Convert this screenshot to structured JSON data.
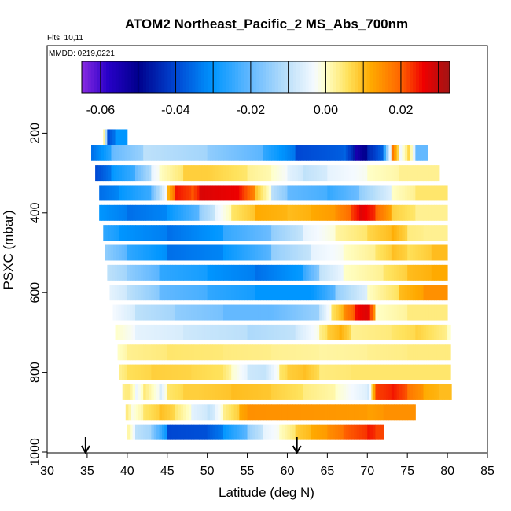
{
  "chart_data": {
    "type": "heatmap",
    "title": "ATOM2 Northeast_Pacific_2 MS_Abs_700nm",
    "flights_note": "Flts: 10,11",
    "dates_note": "MMDD: 0219,0221",
    "xlabel": "Latitude (deg N)",
    "ylabel": "PSXC (mbar)",
    "xlim": [
      30,
      85
    ],
    "ylim": [
      1000,
      0
    ],
    "xticks": [
      "30",
      "35",
      "40",
      "45",
      "50",
      "55",
      "60",
      "65",
      "70",
      "75",
      "80",
      "85"
    ],
    "yticks": [
      "200",
      "400",
      "600",
      "800",
      "1000"
    ],
    "colorbar": {
      "range": [
        -0.065,
        0.033
      ],
      "tick_values": [
        -0.06,
        -0.04,
        -0.02,
        0.0,
        0.02
      ],
      "tick_labels": [
        "-0.06",
        "-0.04",
        "-0.02",
        "0.00",
        "0.02"
      ]
    },
    "markers_lat": [
      34.8,
      61.2
    ],
    "rows": [
      {
        "p": 210,
        "segments": [
          [
            37,
            0.01
          ],
          [
            37.5,
            -0.04
          ],
          [
            38.5,
            -0.03
          ],
          [
            40,
            null
          ]
        ]
      },
      {
        "p": 250,
        "segments": [
          [
            35.5,
            -0.035
          ],
          [
            38,
            -0.02
          ],
          [
            42,
            -0.01
          ],
          [
            50,
            -0.015
          ],
          [
            57,
            -0.025
          ],
          [
            61,
            -0.04
          ],
          [
            67,
            -0.035
          ],
          [
            68.5,
            -0.055
          ],
          [
            70,
            -0.045
          ],
          [
            72,
            -0.03
          ],
          [
            73,
            0.02
          ],
          [
            74,
            -0.005
          ],
          [
            75,
            0.01
          ],
          [
            76,
            -0.02
          ],
          [
            77.5,
            null
          ]
        ]
      },
      {
        "p": 300,
        "segments": [
          [
            36,
            -0.04
          ],
          [
            38,
            -0.03
          ],
          [
            41,
            -0.02
          ],
          [
            43,
            -0.005
          ],
          [
            44,
            0.0
          ],
          [
            47,
            0.008
          ],
          [
            50,
            0.008
          ],
          [
            55,
            0.003
          ],
          [
            58,
            0.0
          ],
          [
            60,
            -0.005
          ],
          [
            62,
            -0.01
          ],
          [
            65,
            -0.005
          ],
          [
            70,
            0.0
          ],
          [
            74,
            0.003
          ],
          [
            79,
            null
          ]
        ]
      },
      {
        "p": 350,
        "segments": [
          [
            36.5,
            -0.035
          ],
          [
            39,
            -0.03
          ],
          [
            43,
            -0.02
          ],
          [
            45,
            0.01
          ],
          [
            46,
            0.025
          ],
          [
            48,
            0.02
          ],
          [
            49,
            0.028
          ],
          [
            54,
            0.025
          ],
          [
            56,
            0.01
          ],
          [
            58,
            -0.01
          ],
          [
            60,
            -0.02
          ],
          [
            65,
            -0.025
          ],
          [
            69,
            -0.015
          ],
          [
            73,
            0.0
          ],
          [
            76,
            0.005
          ],
          [
            80,
            null
          ]
        ]
      },
      {
        "p": 400,
        "segments": [
          [
            36.5,
            -0.03
          ],
          [
            40,
            -0.035
          ],
          [
            45,
            -0.03
          ],
          [
            49,
            -0.015
          ],
          [
            51,
            -0.005
          ],
          [
            53,
            0.005
          ],
          [
            56,
            0.012
          ],
          [
            60,
            0.01
          ],
          [
            63,
            0.012
          ],
          [
            66,
            0.015
          ],
          [
            68,
            0.022
          ],
          [
            69,
            0.028
          ],
          [
            71,
            0.02
          ],
          [
            73,
            0.008
          ],
          [
            76,
            0.003
          ],
          [
            80,
            null
          ]
        ]
      },
      {
        "p": 450,
        "segments": [
          [
            37,
            -0.025
          ],
          [
            39,
            -0.03
          ],
          [
            45,
            -0.035
          ],
          [
            52,
            -0.025
          ],
          [
            58,
            -0.015
          ],
          [
            62,
            -0.005
          ],
          [
            66,
            0.002
          ],
          [
            70,
            0.007
          ],
          [
            73,
            0.012
          ],
          [
            75,
            0.004
          ],
          [
            77,
            0.003
          ],
          [
            80,
            null
          ]
        ]
      },
      {
        "p": 500,
        "segments": [
          [
            37.2,
            -0.015
          ],
          [
            40,
            -0.025
          ],
          [
            45,
            -0.035
          ],
          [
            52,
            -0.03
          ],
          [
            58,
            -0.015
          ],
          [
            63,
            -0.005
          ],
          [
            67,
            0.0
          ],
          [
            71,
            0.005
          ],
          [
            73,
            0.01
          ],
          [
            75,
            0.006
          ],
          [
            78,
            0.01
          ],
          [
            80,
            null
          ]
        ]
      },
      {
        "p": 550,
        "segments": [
          [
            37.5,
            -0.01
          ],
          [
            40,
            -0.015
          ],
          [
            44,
            -0.025
          ],
          [
            50,
            -0.03
          ],
          [
            56,
            -0.035
          ],
          [
            62,
            -0.025
          ],
          [
            64,
            -0.01
          ],
          [
            67,
            0.0
          ],
          [
            72,
            0.005
          ],
          [
            75,
            0.01
          ],
          [
            78,
            0.012
          ],
          [
            80,
            null
          ]
        ]
      },
      {
        "p": 600,
        "segments": [
          [
            37.8,
            -0.005
          ],
          [
            40,
            -0.01
          ],
          [
            44,
            -0.02
          ],
          [
            50,
            -0.025
          ],
          [
            56,
            -0.03
          ],
          [
            63,
            -0.03
          ],
          [
            66,
            -0.015
          ],
          [
            70,
            0.0
          ],
          [
            74,
            0.01
          ],
          [
            77,
            0.015
          ],
          [
            80,
            null
          ]
        ]
      },
      {
        "p": 650,
        "segments": [
          [
            38.2,
            -0.003
          ],
          [
            41,
            -0.01
          ],
          [
            46,
            -0.015
          ],
          [
            52,
            -0.02
          ],
          [
            58,
            -0.02
          ],
          [
            64,
            -0.01
          ],
          [
            65.5,
            0.005
          ],
          [
            67,
            0.015
          ],
          [
            68.5,
            0.025
          ],
          [
            70,
            0.03
          ],
          [
            71,
            0.0
          ],
          [
            75,
            0.004
          ],
          [
            80,
            null
          ]
        ]
      },
      {
        "p": 700,
        "segments": [
          [
            38.5,
            0.0
          ],
          [
            41,
            -0.005
          ],
          [
            47,
            -0.008
          ],
          [
            55,
            -0.012
          ],
          [
            61,
            -0.008
          ],
          [
            64,
            0.003
          ],
          [
            65,
            0.008
          ],
          [
            66.5,
            0.012
          ],
          [
            68,
            0.003
          ],
          [
            73,
            0.005
          ],
          [
            76,
            0.008
          ],
          [
            80,
            0.0
          ],
          [
            80.4,
            null
          ]
        ]
      },
      {
        "p": 750,
        "segments": [
          [
            38.8,
            0.0
          ],
          [
            40,
            0.003
          ],
          [
            45,
            0.005
          ],
          [
            52,
            0.004
          ],
          [
            58,
            0.003
          ],
          [
            64,
            0.002
          ],
          [
            70,
            0.003
          ],
          [
            75,
            0.004
          ],
          [
            80.4,
            null
          ]
        ]
      },
      {
        "p": 800,
        "segments": [
          [
            39,
            0.003
          ],
          [
            40,
            0.006
          ],
          [
            43,
            0.008
          ],
          [
            48,
            0.007
          ],
          [
            52,
            0.005
          ],
          [
            53,
            0.0
          ],
          [
            55,
            -0.008
          ],
          [
            57,
            -0.01
          ],
          [
            59,
            0.005
          ],
          [
            60,
            0.008
          ],
          [
            62,
            0.01
          ],
          [
            64,
            0.004
          ],
          [
            68,
            0.005
          ],
          [
            74,
            0.005
          ],
          [
            80.4,
            null
          ]
        ]
      },
      {
        "p": 850,
        "segments": [
          [
            39.4,
            0.003
          ],
          [
            40,
            0.005
          ],
          [
            41,
            -0.005
          ],
          [
            42,
            0.005
          ],
          [
            44,
            -0.008
          ],
          [
            45,
            0.005
          ],
          [
            47,
            0.008
          ],
          [
            49,
            0.008
          ],
          [
            53,
            0.01
          ],
          [
            58,
            0.008
          ],
          [
            62,
            0.004
          ],
          [
            66,
            0.0
          ],
          [
            70,
            -0.01
          ],
          [
            70.5,
            0.005
          ],
          [
            71,
            0.022
          ],
          [
            73,
            0.025
          ],
          [
            75,
            0.018
          ],
          [
            77,
            0.012
          ],
          [
            79,
            0.01
          ],
          [
            80.5,
            null
          ]
        ]
      },
      {
        "p": 900,
        "segments": [
          [
            39.8,
            0.005
          ],
          [
            40.5,
            -0.002
          ],
          [
            42,
            0.005
          ],
          [
            44,
            0.01
          ],
          [
            46,
            0.005
          ],
          [
            48,
            -0.005
          ],
          [
            50,
            -0.01
          ],
          [
            51,
            -0.005
          ],
          [
            52,
            0.003
          ],
          [
            54,
            0.012
          ],
          [
            55,
            0.015
          ],
          [
            70,
            0.013
          ],
          [
            72,
            0.015
          ],
          [
            76,
            null
          ]
        ]
      },
      {
        "p": 950,
        "segments": [
          [
            40,
            0.003
          ],
          [
            41,
            -0.01
          ],
          [
            43,
            -0.015
          ],
          [
            45,
            -0.04
          ],
          [
            50,
            -0.038
          ],
          [
            52,
            -0.03
          ],
          [
            55,
            -0.015
          ],
          [
            57,
            -0.005
          ],
          [
            59,
            0.0
          ],
          [
            61,
            0.008
          ],
          [
            63,
            0.012
          ],
          [
            65,
            0.015
          ],
          [
            67,
            0.02
          ],
          [
            70,
            0.025
          ],
          [
            71,
            0.022
          ],
          [
            72,
            null
          ]
        ]
      }
    ]
  }
}
